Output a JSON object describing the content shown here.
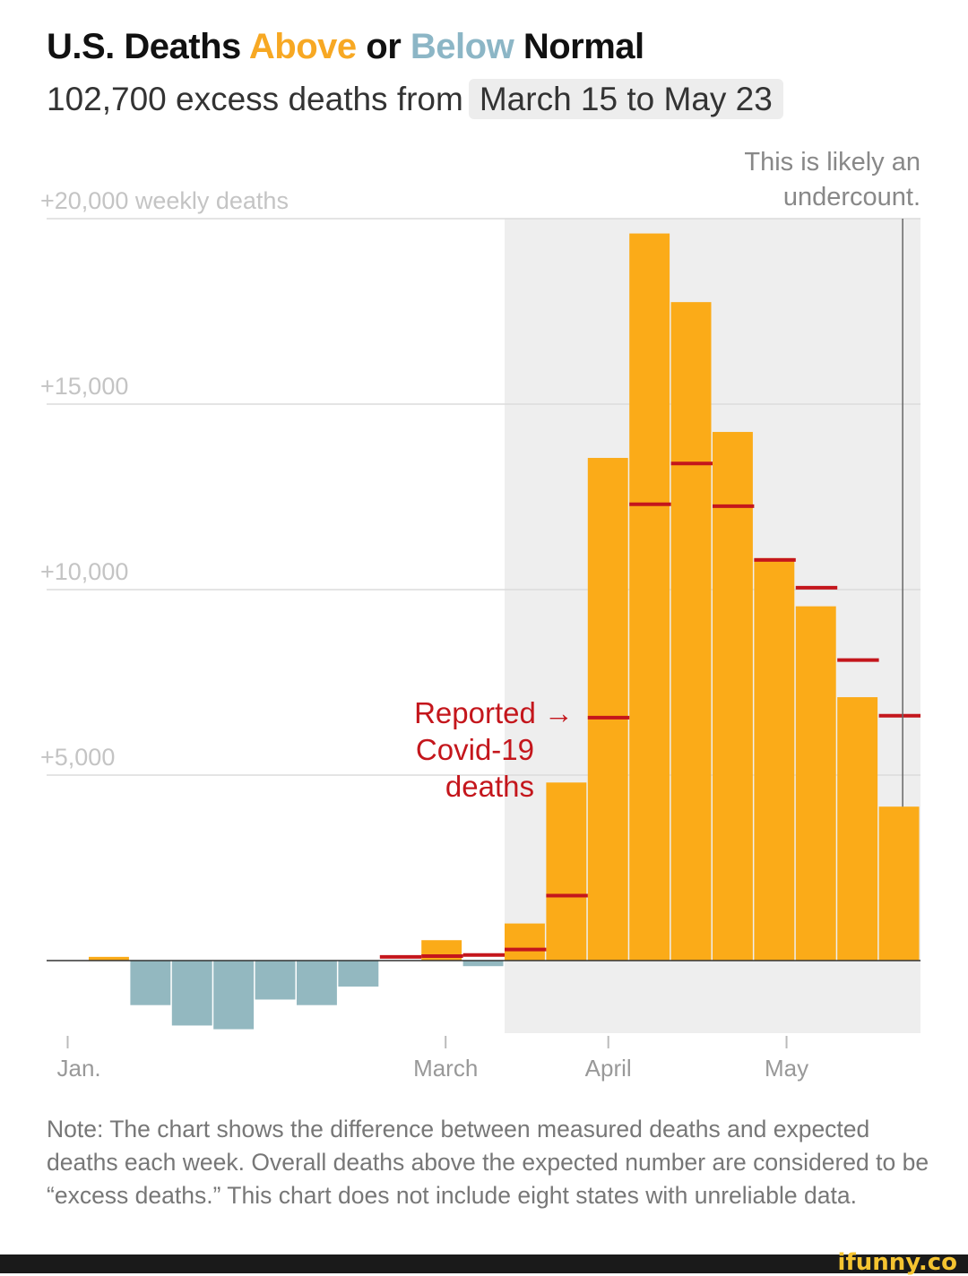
{
  "header": {
    "title_parts": [
      "U.S. Deaths ",
      "Above",
      " or ",
      "Below",
      " Normal"
    ],
    "subtitle": "102,700 excess deaths from",
    "date_range": "March 15 to May 23"
  },
  "colors": {
    "above": "#fbab18",
    "below": "#93b8c0",
    "covid": "#c4161c",
    "shade": "#eeeeee",
    "above_title": "#f7a823",
    "below_title": "#8cb6c6"
  },
  "chart_data": {
    "type": "bar",
    "title": "U.S. Deaths Above or Below Normal",
    "ylabel": "weekly deaths",
    "ylim": [
      -2000,
      20000
    ],
    "yticks": [
      {
        "value": 5000,
        "label": "+5,000"
      },
      {
        "value": 10000,
        "label": "+10,000"
      },
      {
        "value": 15000,
        "label": "+15,000"
      },
      {
        "value": 20000,
        "label": "+20,000 weekly deaths"
      }
    ],
    "xticks": [
      {
        "date": "2020-01-01",
        "label": "Jan."
      },
      {
        "date": "2020-03-01",
        "label": "March"
      },
      {
        "date": "2020-04-01",
        "label": "April"
      },
      {
        "date": "2020-05-01",
        "label": "May"
      }
    ],
    "grid": true,
    "week_starts": [
      "2020-01-05",
      "2020-01-12",
      "2020-01-19",
      "2020-01-26",
      "2020-02-02",
      "2020-02-09",
      "2020-02-16",
      "2020-02-23",
      "2020-03-01",
      "2020-03-08",
      "2020-03-15",
      "2020-03-22",
      "2020-03-29",
      "2020-04-05",
      "2020-04-12",
      "2020-04-19",
      "2020-04-26",
      "2020-05-03",
      "2020-05-10",
      "2020-05-17"
    ],
    "series": [
      {
        "name": "Excess deaths",
        "values": [
          100,
          -1200,
          -1750,
          -1850,
          -1050,
          -1200,
          -700,
          0,
          550,
          -150,
          1000,
          4800,
          13550,
          19600,
          17750,
          14250,
          10850,
          9550,
          7100,
          4150
        ]
      },
      {
        "name": "Reported Covid-19 deaths",
        "values": [
          null,
          null,
          null,
          null,
          null,
          null,
          null,
          100,
          120,
          150,
          300,
          1750,
          6550,
          12300,
          13400,
          12250,
          10800,
          10050,
          8100,
          6600
        ]
      }
    ],
    "highlight_range": [
      "2020-03-15",
      "2020-05-24"
    ],
    "annotations": {
      "covid_label": [
        "Reported →",
        "Covid-19",
        "deaths"
      ],
      "undercount": [
        "This is likely an",
        "undercount."
      ],
      "undercount_line_date": "2020-05-21"
    }
  },
  "note": "Note: The chart shows the difference between measured deaths and expected deaths each week. Overall deaths above the expected number are considered to be “excess deaths.” This chart does not include eight states with unreliable data.",
  "watermark": "ifunny.co"
}
